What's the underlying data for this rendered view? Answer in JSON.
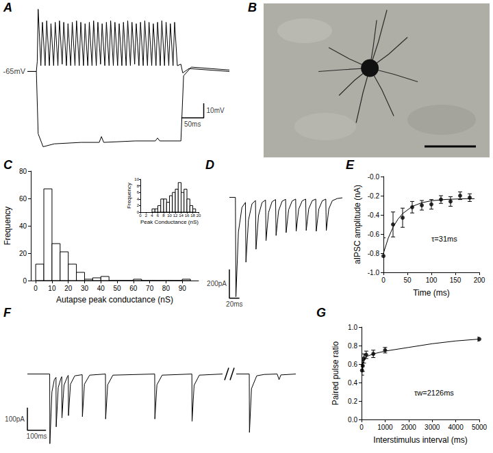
{
  "chart_data": [
    {
      "title": "A",
      "type": "line",
      "tick_labels": false,
      "color": "#000000",
      "xlim": [
        0,
        450
      ],
      "ylim": [
        -122,
        -18
      ],
      "series": [
        {
          "color": "#000000",
          "x": [
            0,
            20,
            22,
            24,
            30,
            33.5,
            39.5,
            43,
            49,
            52.5,
            58.5,
            62,
            68,
            71.5,
            77.5,
            81,
            87,
            90.5,
            96.5,
            100,
            106,
            109.5,
            115.5,
            119,
            125,
            128.5,
            134.5,
            138,
            144,
            147.5,
            153.5,
            157,
            163,
            166.5,
            172.5,
            176,
            182,
            185.5,
            191.5,
            195,
            201,
            204.5,
            210.5,
            214,
            220,
            223.5,
            229.5,
            233,
            239,
            242.5,
            248.5,
            252,
            258,
            261.5,
            267.5,
            271,
            277,
            280.5,
            286.5,
            290,
            296,
            299.5,
            305.5,
            309,
            315,
            318.5,
            324.5,
            328,
            334,
            342,
            346,
            360,
            450
          ],
          "values": [
            -65,
            -65,
            -58,
            -22,
            -61,
            -31,
            -61,
            -30,
            -61,
            -32,
            -61,
            -31,
            -61,
            -30,
            -60,
            -31,
            -61,
            -32,
            -61,
            -31,
            -61,
            -30,
            -61,
            -31,
            -61,
            -32,
            -61,
            -31,
            -61,
            -30,
            -61,
            -31,
            -60,
            -32,
            -61,
            -31,
            -61,
            -30,
            -61,
            -31,
            -61,
            -32,
            -61,
            -31,
            -61,
            -30,
            -61,
            -31,
            -60,
            -32,
            -61,
            -31,
            -61,
            -30,
            -61,
            -31,
            -61,
            -32,
            -61,
            -31,
            -61,
            -30,
            -61,
            -31,
            -61,
            -32,
            -61,
            -31,
            -61,
            -60,
            -66,
            -63,
            -65
          ]
        },
        {
          "color": "#000000",
          "x": [
            0,
            20,
            24,
            35,
            60,
            120,
            160,
            165,
            170,
            240,
            285,
            290,
            295,
            342,
            348,
            365,
            450
          ],
          "values": [
            -65,
            -65,
            -108,
            -117,
            -115,
            -114,
            -114,
            -110,
            -114,
            -113,
            -113,
            -111,
            -113,
            -113,
            -68,
            -62,
            -64
          ]
        }
      ],
      "annotations": [
        {
          "text": "-65mV",
          "y": -65
        }
      ],
      "scale_bars": [
        {
          "axis": "y",
          "value": 10,
          "label": "10mV"
        },
        {
          "axis": "x",
          "value": 50,
          "label": "50ms"
        }
      ]
    },
    {
      "title": "B",
      "type": "image"
    },
    {
      "title": "C",
      "type": "histogram",
      "color": "#ffffff",
      "bins": [
        0,
        5,
        10,
        15,
        20,
        25,
        30,
        35,
        40,
        45,
        50,
        55,
        60,
        65,
        70,
        75,
        80,
        85,
        90,
        95
      ],
      "counts": [
        12,
        67,
        27,
        21,
        12,
        6,
        1,
        2,
        3,
        0,
        0,
        0,
        1,
        0,
        0,
        0,
        0,
        0,
        1
      ],
      "xlim": [
        -3,
        100
      ],
      "xticks": [
        0,
        10,
        20,
        30,
        40,
        50,
        60,
        70,
        80,
        90
      ],
      "ylim": [
        0,
        80
      ],
      "yticks": [
        0,
        20,
        40,
        60,
        80
      ],
      "x_label": "Autapse peak conductance (nS)",
      "y_label": "Frequency",
      "inset": {
        "type": "histogram",
        "color": "#ffffff",
        "bins": [
          4,
          5,
          6,
          7,
          8,
          9,
          10,
          11,
          12,
          13,
          14,
          15,
          16,
          17,
          18,
          19
        ],
        "counts": [
          1,
          1,
          2,
          4,
          4,
          3,
          5,
          6,
          7,
          9,
          6,
          7,
          4,
          2,
          1
        ],
        "xlim": [
          0,
          20
        ],
        "xticks": [
          0,
          2,
          4,
          6,
          8,
          10,
          12,
          14,
          16,
          18,
          20
        ],
        "ylim": [
          0,
          10
        ],
        "yticks": [
          0,
          2,
          4,
          6,
          8,
          10
        ],
        "x_label": "Peak Conductance (nS)",
        "y_label": "Frequency"
      }
    },
    {
      "title": "D",
      "type": "line",
      "tick_labels": false,
      "color": "#000000",
      "xlim": [
        0,
        225
      ],
      "ylim": [
        -720,
        40
      ],
      "x": [
        0,
        12,
        13,
        18,
        25,
        32,
        33,
        38,
        45,
        52,
        53,
        58,
        65,
        72,
        73,
        78,
        85,
        92,
        93,
        98,
        105,
        112,
        113,
        118,
        125,
        132,
        133,
        138,
        145,
        152,
        153,
        158,
        165,
        172,
        173,
        178,
        185,
        192,
        193,
        198,
        205,
        215,
        225
      ],
      "values": [
        0,
        0,
        -690,
        -240,
        -70,
        -35,
        -450,
        -158,
        -45,
        -22,
        -360,
        -126,
        -36,
        -18,
        -300,
        -105,
        -30,
        -15,
        -265,
        -93,
        -27,
        -13,
        -245,
        -86,
        -25,
        -12,
        -235,
        -82,
        -24,
        -12,
        -230,
        -80,
        -23,
        -12,
        -235,
        -82,
        -24,
        -12,
        -230,
        -80,
        -23,
        -8,
        -3
      ],
      "scale_bars": [
        {
          "axis": "y",
          "value": 200,
          "label": "200pA"
        },
        {
          "axis": "x",
          "value": 20,
          "label": "20ms"
        }
      ]
    },
    {
      "title": "E",
      "type": "scatter",
      "color": "#000000",
      "marker": "circle",
      "x": [
        0,
        20,
        40,
        60,
        80,
        100,
        120,
        140,
        160,
        180
      ],
      "values": [
        -0.83,
        -0.5,
        -0.43,
        -0.32,
        -0.3,
        -0.29,
        -0.24,
        -0.26,
        -0.2,
        -0.22
      ],
      "errors": [
        0.19,
        0.13,
        0.1,
        0.06,
        0.05,
        0.05,
        0.04,
        0.05,
        0.04,
        0.04
      ],
      "fit": {
        "x": [
          0,
          10,
          20,
          30,
          40,
          60,
          80,
          100,
          130,
          160,
          190
        ],
        "values": [
          -0.8,
          -0.643,
          -0.529,
          -0.447,
          -0.387,
          -0.312,
          -0.273,
          -0.253,
          -0.239,
          -0.233,
          -0.231
        ]
      },
      "xlim": [
        0,
        200
      ],
      "xticks": [
        0,
        50,
        100,
        150,
        200
      ],
      "ylim": [
        -1,
        0
      ],
      "yticks": [
        {
          "value": -1,
          "label": "-1.0"
        },
        -0.8,
        -0.6,
        -0.4,
        -0.2,
        {
          "value": 0,
          "label": "-0.0"
        }
      ],
      "x_label": "Time (ms)",
      "y_label": "aIPSC amplitude (nA)",
      "annotations": [
        {
          "text": "τ=31ms"
        }
      ]
    },
    {
      "title": "F",
      "type": "line",
      "tick_labels": false,
      "color": "#000000",
      "ylim": [
        -330,
        20
      ],
      "segments": [
        {
          "xlim": [
            -120,
            930
          ],
          "x": [
            -120,
            0,
            1,
            12,
            25,
            34,
            35,
            46,
            60,
            65,
            66,
            77,
            95,
            100,
            101,
            112,
            135,
            175,
            176,
            187,
            215,
            300,
            301,
            312,
            340,
            565,
            566,
            577,
            605,
            765,
            766,
            777,
            805,
            930
          ],
          "values": [
            0,
            0,
            -310,
            -80,
            -25,
            -15,
            -235,
            -60,
            -20,
            -12,
            -195,
            -50,
            -12,
            -6,
            -185,
            -45,
            -8,
            -3,
            -190,
            -45,
            -5,
            0,
            -200,
            -48,
            -5,
            0,
            -200,
            -48,
            -5,
            0,
            -210,
            -50,
            -5,
            0
          ]
        },
        {
          "xlim": [
            4930,
            5250
          ],
          "x": [
            4930,
            5000,
            5001,
            5012,
            5040,
            5080,
            5150,
            5160,
            5170,
            5250
          ],
          "values": [
            0,
            0,
            -260,
            -65,
            -8,
            -2,
            0,
            -25,
            -4,
            0
          ]
        }
      ],
      "scale_bars": [
        {
          "axis": "y",
          "value": 100,
          "label": "100pA"
        },
        {
          "axis": "x",
          "value": 100,
          "label": "100ms"
        }
      ]
    },
    {
      "title": "G",
      "type": "scatter",
      "color": "#000000",
      "marker": "circle",
      "x": [
        20,
        50,
        100,
        200,
        500,
        1000,
        5000
      ],
      "values": [
        0.53,
        0.58,
        0.66,
        0.7,
        0.71,
        0.75,
        0.87
      ],
      "errors": [
        0.05,
        0.06,
        0.05,
        0.04,
        0.04,
        0.03,
        0.02
      ],
      "fit": {
        "x": [
          20,
          50,
          100,
          200,
          300,
          500,
          1000,
          2000,
          3000,
          4000,
          5000
        ],
        "values": [
          0.54,
          0.59,
          0.64,
          0.68,
          0.69,
          0.71,
          0.74,
          0.78,
          0.82,
          0.85,
          0.87
        ]
      },
      "xlim": [
        0,
        5000
      ],
      "xticks": [
        0,
        1000,
        2000,
        3000,
        4000,
        5000
      ],
      "ylim": [
        0,
        1
      ],
      "yticks": [
        {
          "value": 0,
          "label": "0.0"
        },
        0.2,
        0.4,
        0.6,
        0.8,
        {
          "value": 1,
          "label": "1.0"
        }
      ],
      "x_label": "Interstimulus interval (ms)",
      "y_label": "Paired pulse ratio",
      "annotations": [
        {
          "text": "τw=2126ms"
        }
      ]
    }
  ]
}
